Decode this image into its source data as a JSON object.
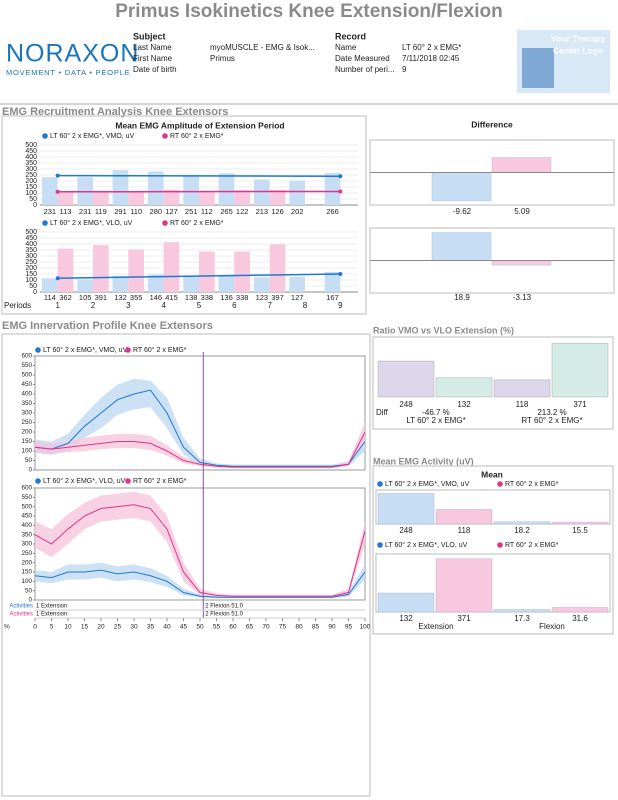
{
  "header": {
    "title": "Primus  Isokinetics Knee Extension/Flexion",
    "brand": "NORAXON",
    "tagline": "MOVEMENT • DATA • PEOPLE",
    "subject": {
      "heading": "Subject",
      "rows": [
        [
          "Last Name",
          "myoMUSCLE - EMG & Isok..."
        ],
        [
          "First Name",
          "Primus"
        ],
        [
          "Date of birth"
        ]
      ]
    },
    "record": {
      "heading": "Record",
      "rows": [
        [
          "Name",
          "LT 60° 2 x EMG*"
        ],
        [
          "Date Measured",
          "7/11/2018 02:45"
        ],
        [
          "Number of peri...",
          "9"
        ]
      ]
    },
    "logo": [
      "Your Therapy",
      "Center Logo"
    ]
  },
  "sections": [
    "EMG Recruitment Analysis Knee Extensors",
    "EMG Innervation Profile Knee Extensors",
    "Mean EMG Activity (uV)"
  ],
  "chart_data": [
    {
      "type": "bar",
      "title": "Mean EMG Amplitude of Extension Period",
      "ylim": [
        0,
        500
      ],
      "yticks": [
        0,
        50,
        100,
        150,
        200,
        250,
        300,
        350,
        400,
        450,
        500
      ],
      "series": [
        {
          "name": "LT 60° 2 x EMG*, VMO, uV",
          "color": "#1f78d1",
          "bar_color": "#c6ddf4",
          "values": [
            231,
            231,
            291,
            280,
            251,
            265,
            213,
            202,
            266
          ],
          "trend": [
            245,
            240
          ]
        },
        {
          "name": "RT 60° 2 x EMG*",
          "color": "#e0348b",
          "bar_color": "#f8c8de",
          "values": [
            113,
            119,
            110,
            127,
            112,
            122,
            126,
            null,
            null
          ],
          "trend": [
            110,
            113
          ]
        }
      ]
    },
    {
      "type": "bar",
      "x_label": "Periods",
      "categories": [
        "1",
        "2",
        "3",
        "4",
        "5",
        "6",
        "7",
        "8",
        "9"
      ],
      "ylim": [
        0,
        500
      ],
      "yticks": [
        0,
        50,
        100,
        150,
        200,
        250,
        300,
        350,
        400,
        450,
        500
      ],
      "series": [
        {
          "name": "LT 60° 2 x EMG*, VLO, uV",
          "color": "#1f78d1",
          "bar_color": "#c6ddf4",
          "values": [
            114,
            105,
            132,
            146,
            138,
            136,
            123,
            127,
            167
          ],
          "trend": [
            115,
            150
          ]
        },
        {
          "name": "RT 60° 2 x EMG*",
          "color": "#e0348b",
          "bar_color": "#f8c8de",
          "values": [
            362,
            391,
            355,
            415,
            338,
            338,
            397,
            null,
            null
          ]
        }
      ]
    },
    {
      "type": "diff",
      "title": "Difference",
      "ylim": [
        -11,
        11
      ],
      "values": [
        -9.62,
        5.09
      ],
      "colors": [
        "#c6ddf4",
        "#f8c8de"
      ]
    },
    {
      "type": "diff",
      "ylim": [
        -22,
        22
      ],
      "values": [
        18.9,
        -3.13
      ],
      "colors": [
        "#c6ddf4",
        "#f8c8de"
      ]
    },
    {
      "type": "line",
      "ylim": [
        0,
        600
      ],
      "yticks": [
        0,
        50,
        100,
        150,
        200,
        250,
        300,
        350,
        400,
        450,
        500,
        550,
        600
      ],
      "xlim": [
        0,
        100
      ],
      "x": [
        0,
        5,
        10,
        15,
        20,
        25,
        30,
        35,
        40,
        45,
        50,
        55,
        60,
        65,
        70,
        75,
        80,
        85,
        90,
        95,
        100
      ],
      "series": [
        {
          "name": "LT 60° 2 x EMG*, VMO, uV",
          "color": "#1f78d1",
          "band_color": "#bcd7f2",
          "values": [
            120,
            110,
            140,
            230,
            300,
            370,
            400,
            420,
            300,
            120,
            40,
            25,
            20,
            20,
            20,
            20,
            20,
            20,
            20,
            30,
            150
          ],
          "upper": [
            160,
            150,
            190,
            290,
            380,
            450,
            480,
            470,
            380,
            170,
            60,
            35,
            28,
            28,
            28,
            28,
            28,
            28,
            28,
            45,
            200
          ],
          "lower": [
            90,
            80,
            100,
            170,
            220,
            290,
            320,
            330,
            220,
            80,
            25,
            15,
            12,
            12,
            12,
            12,
            12,
            12,
            12,
            20,
            100
          ]
        },
        {
          "name": "RT 60° 2 x EMG*",
          "color": "#e0348b",
          "band_color": "#f5c2da",
          "values": [
            120,
            110,
            120,
            130,
            140,
            150,
            150,
            140,
            100,
            50,
            30,
            20,
            15,
            15,
            15,
            15,
            15,
            15,
            15,
            30,
            200
          ],
          "upper": [
            150,
            140,
            150,
            170,
            180,
            190,
            190,
            180,
            130,
            70,
            40,
            28,
            20,
            20,
            20,
            20,
            20,
            20,
            20,
            45,
            250
          ],
          "lower": [
            95,
            85,
            95,
            100,
            110,
            115,
            115,
            105,
            75,
            35,
            20,
            13,
            10,
            10,
            10,
            10,
            10,
            10,
            10,
            20,
            150
          ]
        }
      ]
    },
    {
      "type": "line",
      "ylim": [
        0,
        600
      ],
      "yticks": [
        0,
        50,
        100,
        150,
        200,
        250,
        300,
        350,
        400,
        450,
        500,
        550,
        600
      ],
      "xlim": [
        0,
        100
      ],
      "xticks": [
        0,
        5,
        10,
        15,
        20,
        25,
        30,
        35,
        40,
        45,
        50,
        55,
        60,
        65,
        70,
        75,
        80,
        85,
        90,
        95,
        100
      ],
      "x_label": "%",
      "x": [
        0,
        5,
        10,
        15,
        20,
        25,
        30,
        35,
        40,
        45,
        50,
        55,
        60,
        65,
        70,
        75,
        80,
        85,
        90,
        95,
        100
      ],
      "divider": 51,
      "activities": [
        {
          "label": "Activities",
          "color": "#1f78d1",
          "items": [
            "1 Extension",
            "2 Flexion 51.0"
          ]
        },
        {
          "label": "Activities",
          "color": "#e0348b",
          "items": [
            "1 Extension",
            "2 Flexion 51.0"
          ]
        }
      ],
      "series": [
        {
          "name": "LT 60° 2 x EMG*, VLO, uV",
          "color": "#1f78d1",
          "band_color": "#bcd7f2",
          "values": [
            130,
            120,
            150,
            150,
            160,
            140,
            150,
            130,
            100,
            40,
            20,
            15,
            15,
            15,
            15,
            15,
            15,
            15,
            15,
            30,
            150
          ],
          "upper": [
            160,
            150,
            190,
            190,
            200,
            180,
            190,
            170,
            130,
            60,
            30,
            22,
            22,
            22,
            22,
            22,
            22,
            22,
            22,
            45,
            190
          ],
          "lower": [
            100,
            90,
            110,
            110,
            120,
            100,
            110,
            95,
            70,
            25,
            12,
            10,
            10,
            10,
            10,
            10,
            10,
            10,
            10,
            18,
            110
          ]
        },
        {
          "name": "RT 60° 2 x EMG*",
          "color": "#e0348b",
          "band_color": "#f5c2da",
          "values": [
            350,
            300,
            380,
            450,
            490,
            500,
            510,
            490,
            380,
            150,
            40,
            25,
            20,
            20,
            20,
            20,
            20,
            20,
            20,
            40,
            370
          ],
          "upper": [
            420,
            380,
            460,
            520,
            560,
            570,
            580,
            560,
            450,
            200,
            60,
            35,
            28,
            28,
            28,
            28,
            28,
            28,
            28,
            60,
            420
          ],
          "lower": [
            280,
            230,
            300,
            380,
            420,
            430,
            440,
            420,
            310,
            100,
            25,
            15,
            12,
            12,
            12,
            12,
            12,
            12,
            12,
            25,
            300
          ]
        }
      ]
    },
    {
      "type": "ratio",
      "title": "Ratio VMO vs VLO Extension (%)",
      "ylim": [
        0,
        400
      ],
      "values": [
        248,
        132,
        118,
        371
      ],
      "colors": [
        "#dcd7ea",
        "#d5ebe5",
        "#dcd7ea",
        "#d5ebe5"
      ],
      "diff_label": "Diff",
      "diffs": [
        -46.7,
        213.2
      ],
      "diff_labels": [
        "-46.7 %",
        "213.2 %"
      ],
      "groups": [
        "LT 60° 2 x EMG*",
        "RT 60° 2 x EMG*"
      ]
    },
    {
      "type": "mean",
      "title": "Mean",
      "ylim": [
        0,
        260
      ],
      "values": [
        248,
        118,
        18.2,
        15.5
      ],
      "colors": [
        "#c6ddf4",
        "#f8c8de",
        "#c6ddf4",
        "#f8c8de"
      ],
      "series": [
        {
          "name": "LT 60° 2 x EMG*, VMO, uV",
          "color": "#1f78d1"
        },
        {
          "name": "RT 60° 2 x EMG*",
          "color": "#e0348b"
        }
      ]
    },
    {
      "type": "mean",
      "ylim": [
        0,
        390
      ],
      "values": [
        132,
        371,
        17.3,
        31.6
      ],
      "colors": [
        "#c6ddf4",
        "#f8c8de",
        "#c6ddf4",
        "#f8c8de"
      ],
      "groups": [
        "Extension",
        "Flexion"
      ],
      "series": [
        {
          "name": "LT 60° 2 x EMG*, VLO, uV",
          "color": "#1f78d1"
        },
        {
          "name": "RT 60° 2 x EMG*",
          "color": "#e0348b"
        }
      ]
    }
  ]
}
